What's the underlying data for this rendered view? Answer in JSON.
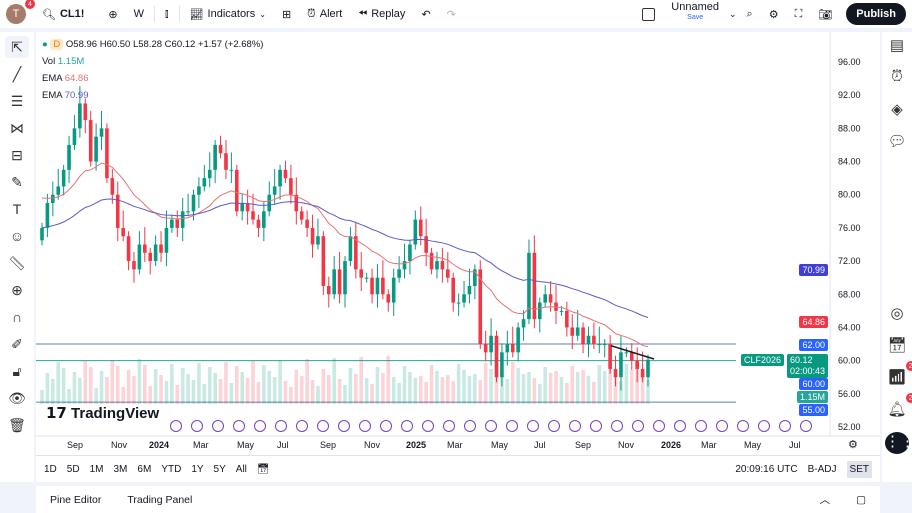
{
  "toolbar": {
    "avatar": "T",
    "avatar_badge": "4",
    "symbol": "CL1!",
    "interval": "W",
    "indicators": "Indicators",
    "alert": "Alert",
    "replay": "Replay",
    "layout_name": "Unnamed",
    "layout_save": "Save",
    "publish": "Publish"
  },
  "legend": {
    "interval": "D",
    "ohlc": "O58.96 H60.50 L58.28 C60.12 +1.57 (+2.68%)",
    "vol_label": "Vol",
    "vol_value": "1.15M",
    "ema1_label": "EMA",
    "ema1_value": "64.86",
    "ema2_label": "EMA",
    "ema2_value": "70.99"
  },
  "colors": {
    "up": "#089981",
    "down": "#f23645",
    "ema_fast": "#e57373",
    "ema_slow": "#5b5bc8",
    "line_label": "#2962ff"
  },
  "price_labels": {
    "ema_slow": "70.99",
    "ema_fast": "64.86",
    "line_62": "62.00",
    "symbol_tag": "CLF2026",
    "last": "60.12",
    "countdown": "02:00:43",
    "line_60": "60.00",
    "volume": "1.15M",
    "line_55": "55.00"
  },
  "logo": "TradingView",
  "right_badges": [
    "2",
    "2"
  ],
  "chart_data": {
    "type": "candlestick",
    "y_ticks": [
      96,
      92,
      88,
      84,
      80,
      76,
      72,
      68,
      64,
      60,
      56,
      52
    ],
    "ylim": [
      52,
      96
    ],
    "x_ticks": [
      "Sep",
      "Nov",
      "2024",
      "Mar",
      "May",
      "Jul",
      "Sep",
      "Nov",
      "2025",
      "Mar",
      "May",
      "Jul",
      "Sep",
      "Nov",
      "2026",
      "Mar",
      "May",
      "Jul"
    ],
    "closes": [
      76,
      79,
      80,
      81,
      83,
      86,
      88,
      91,
      89,
      84,
      87,
      88,
      82,
      80,
      76,
      75,
      72,
      71,
      74,
      73,
      72,
      74,
      73,
      76,
      77,
      76,
      78,
      78,
      80,
      81,
      82,
      83,
      86,
      85,
      83,
      83,
      78,
      79,
      78,
      77,
      76,
      78,
      80,
      81,
      83,
      82,
      80,
      78,
      77,
      76,
      74,
      75,
      69,
      68,
      71,
      68,
      72,
      75,
      71,
      70,
      70,
      68,
      70,
      68,
      67,
      70,
      71,
      72,
      74,
      77,
      75,
      73,
      71,
      72,
      71,
      70,
      67,
      67,
      68,
      69,
      71,
      62,
      61,
      63,
      58,
      61,
      62,
      61,
      64,
      65,
      73,
      65,
      67,
      68,
      67,
      66,
      66,
      64,
      63,
      64,
      62,
      63,
      62,
      62,
      62,
      59,
      58,
      61,
      61,
      60,
      59,
      58,
      60.12
    ],
    "horizontal_lines": [
      62,
      60,
      55
    ]
  },
  "bottom": {
    "ranges": [
      "1D",
      "5D",
      "1M",
      "3M",
      "6M",
      "YTD",
      "1Y",
      "5Y",
      "All"
    ],
    "time": "20:09:16 UTC",
    "adj": "B-ADJ",
    "session": "SET"
  },
  "panel": {
    "pine": "Pine Editor",
    "trading": "Trading Panel"
  }
}
